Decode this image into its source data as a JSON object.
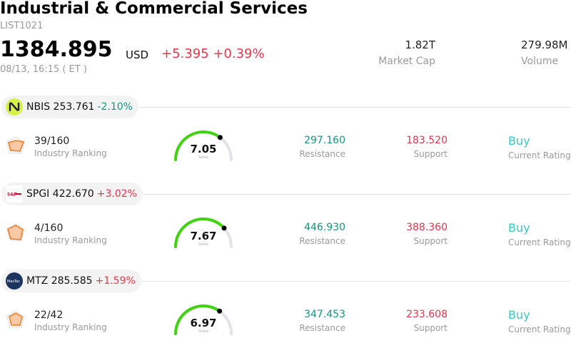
{
  "header": {
    "title": "Industrial & Commercial Services",
    "code": "LIST1021",
    "price": "1384.895",
    "currency": "USD",
    "change": "+5.395 +0.39%",
    "time": "08/13, 16:15  ( ET )",
    "market_cap_value": "1.82T",
    "market_cap_label": "Market Cap",
    "volume_value": "279.98M",
    "volume_label": "Volume"
  },
  "colors": {
    "up": "#f0334a",
    "down": "#12957f",
    "rating": "#3cc6c0",
    "gauge": "#3fd40f"
  },
  "stocks": [
    {
      "ticker": "NBIS",
      "price": "253.761",
      "pct": "-2.10%",
      "pct_color": "#12957f",
      "logo_icon": "nebius-logo-icon",
      "rank": "39/160",
      "rank_label": "Industry Ranking",
      "score": "7.05",
      "score_label": "Score",
      "score_level": 0.705,
      "resistance": "297.160",
      "resistance_label": "Resistance",
      "support": "183.520",
      "support_label": "Support",
      "rating": "Buy",
      "rating_label": "Current Rating"
    },
    {
      "ticker": "SPGI",
      "price": "422.670",
      "pct": "+3.02%",
      "pct_color": "#f0334a",
      "logo_icon": "sp-global-logo-icon",
      "rank": "4/160",
      "rank_label": "Industry Ranking",
      "score": "7.67",
      "score_label": "Score",
      "score_level": 0.767,
      "resistance": "446.930",
      "resistance_label": "Resistance",
      "support": "388.360",
      "support_label": "Support",
      "rating": "Buy",
      "rating_label": "Current Rating"
    },
    {
      "ticker": "MTZ",
      "price": "285.585",
      "pct": "+1.59%",
      "pct_color": "#f0334a",
      "logo_icon": "mastec-logo-icon",
      "rank": "22/42",
      "rank_label": "Industry Ranking",
      "score": "6.97",
      "score_label": "Score",
      "score_level": 0.697,
      "resistance": "347.453",
      "resistance_label": "Resistance",
      "support": "233.608",
      "support_label": "Support",
      "rating": "Buy",
      "rating_label": "Current Rating"
    }
  ]
}
